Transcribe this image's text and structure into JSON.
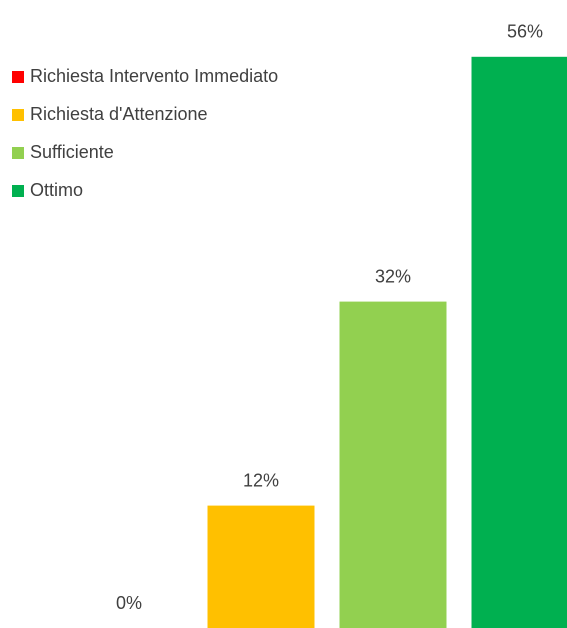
{
  "chart_data": {
    "type": "bar",
    "categories": [
      "Richiesta Intervento Immediato",
      "Richiesta d'Attenzione",
      "Sufficiente",
      "Ottimo"
    ],
    "values": [
      0,
      12,
      32,
      56
    ],
    "value_labels": [
      "0%",
      "12%",
      "32%",
      "56%"
    ],
    "colors": [
      "#ff0000",
      "#ffc000",
      "#92d050",
      "#00b050"
    ],
    "legend": "top-left"
  }
}
